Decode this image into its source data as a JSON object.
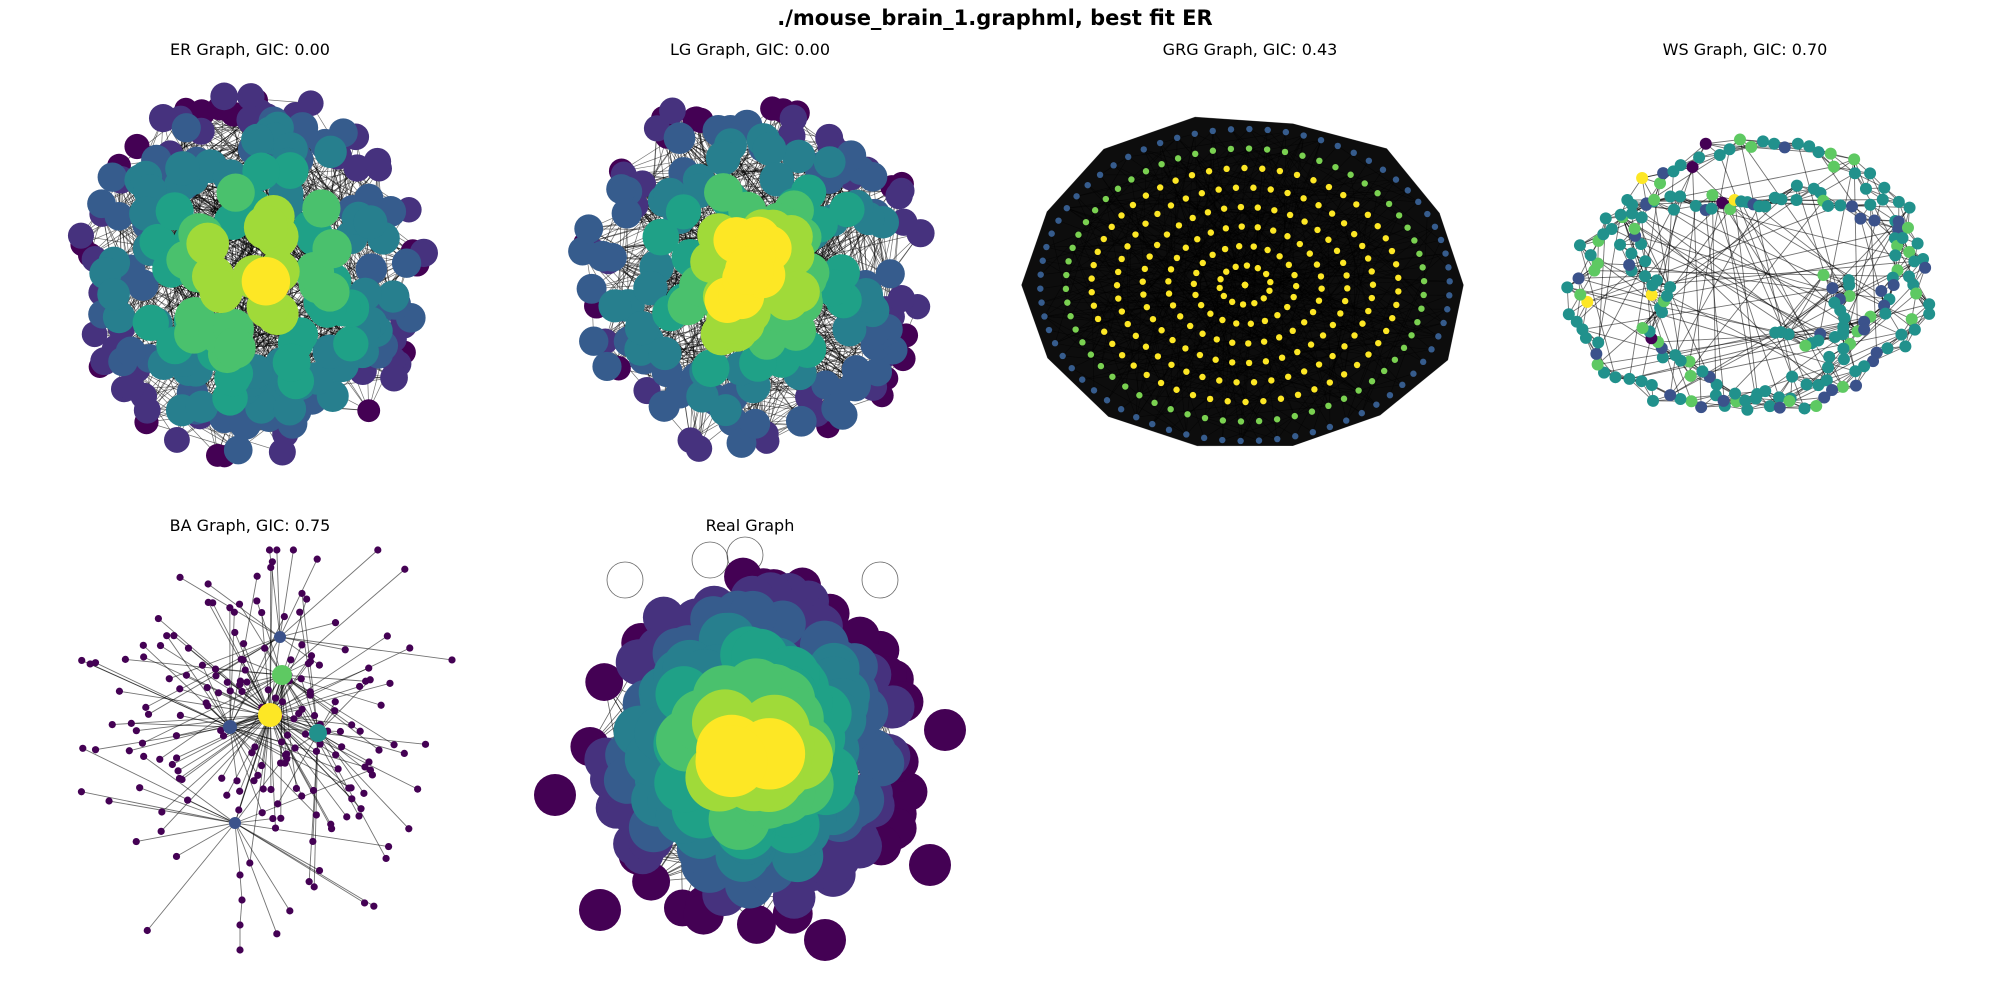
{
  "figure": {
    "title": "./mouse_brain_1.graphml, best fit ER"
  },
  "panels": [
    {
      "title": "ER Graph, GIC: 0.00",
      "kind": "dense_blob",
      "seed": 11,
      "nodes": 230,
      "edge_intensity": "heavy",
      "palette": [
        "#440154",
        "#46327e",
        "#365c8d",
        "#277f8e",
        "#1fa187",
        "#4ac16d",
        "#a0da39",
        "#fde725"
      ]
    },
    {
      "title": "LG Graph, GIC: 0.00",
      "kind": "dense_blob",
      "seed": 23,
      "nodes": 220,
      "edge_intensity": "heavy",
      "palette": [
        "#440154",
        "#46327e",
        "#365c8d",
        "#277f8e",
        "#1fa187",
        "#4ac16d",
        "#a0da39",
        "#fde725"
      ]
    },
    {
      "title": "GRG Graph, GIC: 0.43",
      "kind": "geometric",
      "seed": 37,
      "nodes": 213,
      "edge_intensity": "saturated",
      "palette": [
        "#440154",
        "#365c8d",
        "#1fa187",
        "#7ad151",
        "#fde725"
      ]
    },
    {
      "title": "WS Graph, GIC: 0.70",
      "kind": "small_world",
      "seed": 41,
      "nodes": 213,
      "edge_intensity": "light",
      "palette": [
        "#440154",
        "#3b528b",
        "#21918c",
        "#5ec962",
        "#fde725"
      ]
    },
    {
      "title": "BA Graph, GIC: 0.75",
      "kind": "scale_free",
      "seed": 53,
      "nodes": 213,
      "edge_intensity": "sparse",
      "palette": [
        "#440154",
        "#3b528b",
        "#21918c",
        "#5ec962",
        "#fde725"
      ]
    },
    {
      "title": "Real Graph",
      "kind": "real_blob",
      "seed": 67,
      "nodes": 213,
      "edge_intensity": "heavy",
      "palette": [
        "#440154",
        "#46327e",
        "#365c8d",
        "#277f8e",
        "#1fa187",
        "#4ac16d",
        "#a0da39",
        "#fde725"
      ]
    }
  ]
}
